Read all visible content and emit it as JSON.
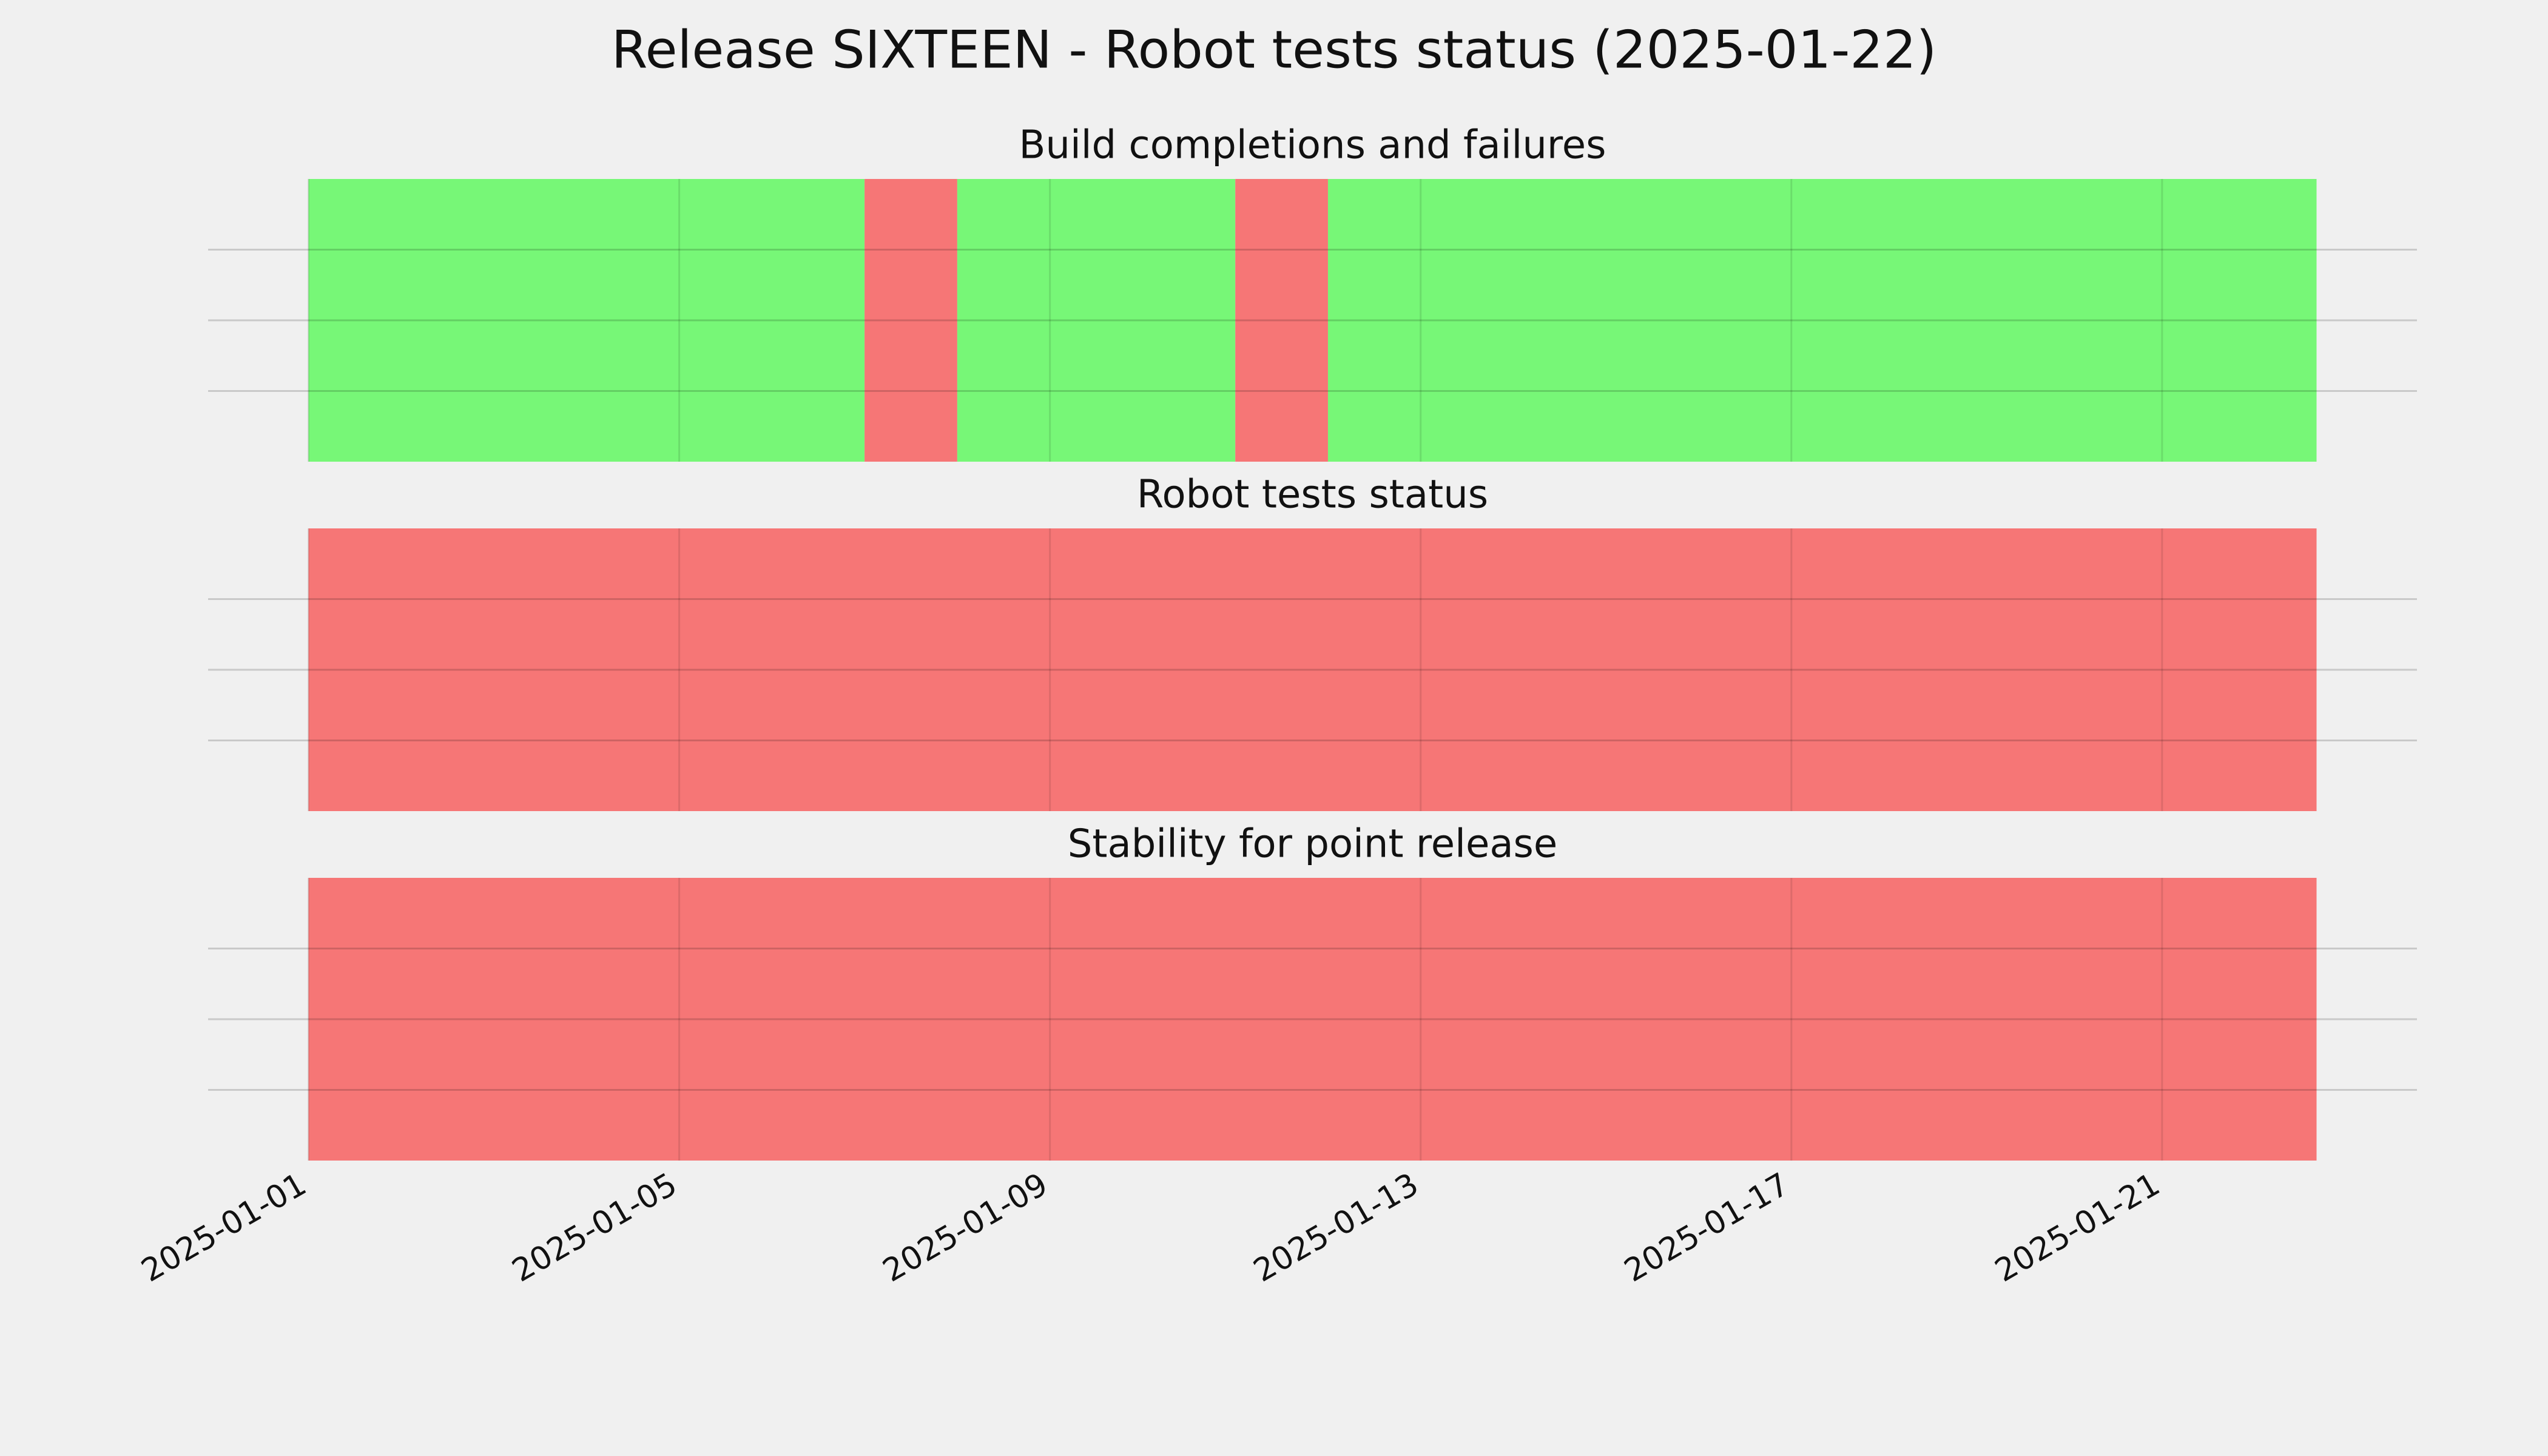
{
  "title": "Release SIXTEEN - Robot tests status (2025-01-22)",
  "chart_data": [
    {
      "type": "span",
      "title": "Build completions and failures",
      "spans": [
        {
          "start": "2025-01-01",
          "end": "2025-01-07",
          "color": "#77f777"
        },
        {
          "start": "2025-01-07",
          "end": "2025-01-08",
          "color": "#f67676"
        },
        {
          "start": "2025-01-08",
          "end": "2025-01-11",
          "color": "#77f777"
        },
        {
          "start": "2025-01-11",
          "end": "2025-01-12",
          "color": "#f67676"
        },
        {
          "start": "2025-01-12",
          "end": "2025-01-22T16:00",
          "color": "#77f777"
        }
      ],
      "xlim": [
        "2024-12-30T22:00",
        "2025-01-23T18:00"
      ],
      "xticks": [
        "2025-01-01",
        "2025-01-05",
        "2025-01-09",
        "2025-01-13",
        "2025-01-17",
        "2025-01-21"
      ],
      "xtick_labels": false,
      "ylim": [
        0,
        1
      ],
      "yticks": [
        0.25,
        0.5,
        0.75
      ],
      "ytick_labels": false,
      "grid": true
    },
    {
      "type": "span",
      "title": "Robot tests status",
      "spans": [
        {
          "start": "2025-01-01",
          "end": "2025-01-22T16:00",
          "color": "#f67676"
        }
      ],
      "xlim": [
        "2024-12-30T22:00",
        "2025-01-23T18:00"
      ],
      "xticks": [
        "2025-01-01",
        "2025-01-05",
        "2025-01-09",
        "2025-01-13",
        "2025-01-17",
        "2025-01-21"
      ],
      "xtick_labels": false,
      "ylim": [
        0,
        1
      ],
      "yticks": [
        0.25,
        0.5,
        0.75
      ],
      "ytick_labels": false,
      "grid": true
    },
    {
      "type": "span",
      "title": "Stability for point release",
      "spans": [
        {
          "start": "2025-01-01",
          "end": "2025-01-22T16:00",
          "color": "#f67676"
        }
      ],
      "xlim": [
        "2024-12-30T22:00",
        "2025-01-23T18:00"
      ],
      "xticks": [
        "2025-01-01",
        "2025-01-05",
        "2025-01-09",
        "2025-01-13",
        "2025-01-17",
        "2025-01-21"
      ],
      "xtick_labels": true,
      "ylim": [
        0,
        1
      ],
      "yticks": [
        0.25,
        0.5,
        0.75
      ],
      "ytick_labels": false,
      "grid": true
    }
  ]
}
